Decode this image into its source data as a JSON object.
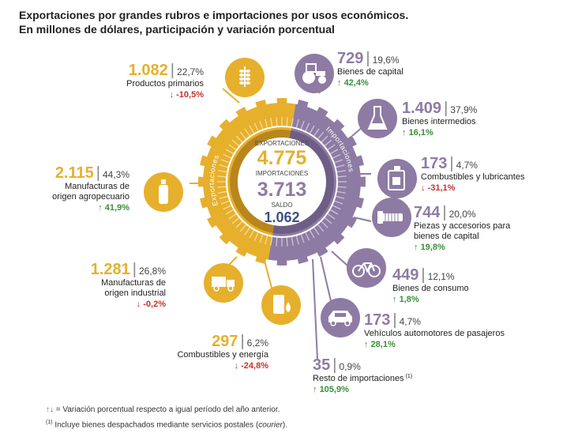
{
  "title_line1": "Exportaciones por grandes rubros e importaciones por usos económicos.",
  "title_line2": "En millones de dólares, participación y variación porcentual",
  "chart_data": {
    "type": "pie",
    "center": {
      "exports_label": "EXPORTACIONES",
      "exports_value": "4.775",
      "imports_label": "IMPORTACIONES",
      "imports_value": "3.713",
      "balance_label": "SALDO",
      "balance_value": "1.062"
    },
    "ring_labels": {
      "exports": "Exportaciones",
      "imports": "Importaciones"
    },
    "colors": {
      "exports": "#E6B02C",
      "imports": "#8E7BA4",
      "up": "#3A8F3A",
      "down": "#C8322C"
    },
    "exports": [
      {
        "value": "1.082",
        "share": "22,7%",
        "label": [
          "Productos primarios"
        ],
        "var": "-10,5%",
        "dir": "down",
        "icon": "wheat-icon"
      },
      {
        "value": "2.115",
        "share": "44,3%",
        "label": [
          "Manufacturas de",
          "origen agropecuario"
        ],
        "var": "41,9%",
        "dir": "up",
        "icon": "bottle-icon"
      },
      {
        "value": "1.281",
        "share": "26,8%",
        "label": [
          "Manufacturas de",
          "origen industrial"
        ],
        "var": "-0,2%",
        "dir": "down",
        "icon": "truck-icon"
      },
      {
        "value": "297",
        "share": "6,2%",
        "label": [
          "Combustibles y energía"
        ],
        "var": "-24,8%",
        "dir": "down",
        "icon": "barrel-icon"
      }
    ],
    "imports": [
      {
        "value": "729",
        "share": "19,6%",
        "label": [
          "Bienes de capital"
        ],
        "var": "42,4%",
        "dir": "up",
        "icon": "tractor-icon"
      },
      {
        "value": "1.409",
        "share": "37,9%",
        "label": [
          "Bienes intermedios"
        ],
        "var": "16,1%",
        "dir": "up",
        "icon": "flask-icon"
      },
      {
        "value": "173",
        "share": "4,7%",
        "label": [
          "Combustibles y lubricantes"
        ],
        "var": "-31,1%",
        "dir": "down",
        "icon": "jerrycan-icon"
      },
      {
        "value": "744",
        "share": "20,0%",
        "label": [
          "Piezas y accesorios para",
          "bienes de capital"
        ],
        "var": "19,8%",
        "dir": "up",
        "icon": "bolt-icon"
      },
      {
        "value": "449",
        "share": "12,1%",
        "label": [
          "Bienes de consumo"
        ],
        "var": "1,8%",
        "dir": "up",
        "icon": "bicycle-icon"
      },
      {
        "value": "173",
        "share": "4,7%",
        "label": [
          "Vehículos automotores de pasajeros"
        ],
        "var": "28,1%",
        "dir": "up",
        "icon": "car-icon"
      },
      {
        "value": "35",
        "share": "0,9%",
        "label": [
          "Resto de importaciones"
        ],
        "footnote": "(1)",
        "var": "105,9%",
        "dir": "up",
        "icon": ""
      }
    ]
  },
  "legend_line1": "= Variación porcentual respecto a igual período del año anterior.",
  "legend_footnote_mark": "(1)",
  "legend_line2_pre": "Incluye bienes despachados mediante servicios postales (",
  "legend_line2_em": "courier",
  "legend_line2_post": ")."
}
